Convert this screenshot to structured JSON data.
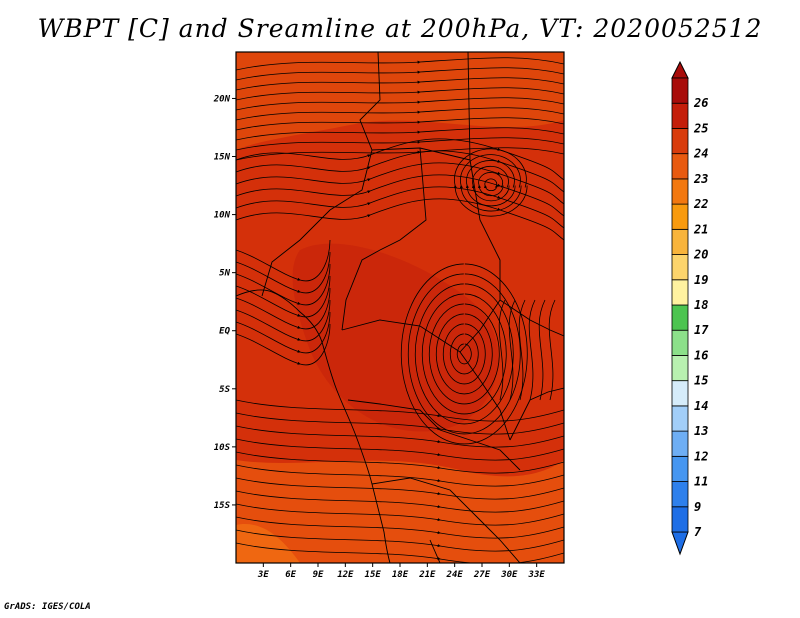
{
  "title": "WBPT [C] and Sreamline at 200hPa, VT: 2020052512",
  "credit": "GrADS: IGES/COLA",
  "map": {
    "lon_range": [
      0,
      36
    ],
    "lat_range": [
      -20,
      24
    ],
    "lat_ticks": [
      {
        "lat": 20,
        "label": "20N"
      },
      {
        "lat": 15,
        "label": "15N"
      },
      {
        "lat": 10,
        "label": "10N"
      },
      {
        "lat": 5,
        "label": "5N"
      },
      {
        "lat": 0,
        "label": "EQ"
      },
      {
        "lat": -5,
        "label": "5S"
      },
      {
        "lat": -10,
        "label": "10S"
      },
      {
        "lat": -15,
        "label": "15S"
      }
    ],
    "lon_ticks": [
      {
        "lon": 3,
        "label": "3E"
      },
      {
        "lon": 6,
        "label": "6E"
      },
      {
        "lon": 9,
        "label": "9E"
      },
      {
        "lon": 12,
        "label": "12E"
      },
      {
        "lon": 15,
        "label": "15E"
      },
      {
        "lon": 18,
        "label": "18E"
      },
      {
        "lon": 21,
        "label": "21E"
      },
      {
        "lon": 24,
        "label": "24E"
      },
      {
        "lon": 27,
        "label": "27E"
      },
      {
        "lon": 30,
        "label": "30E"
      },
      {
        "lon": 33,
        "label": "33E"
      }
    ],
    "base_fill": "#d4300a",
    "shading": [
      {
        "color": "#e04a0c",
        "region": "north"
      },
      {
        "color": "#c8240a",
        "region": "center"
      },
      {
        "color": "#e8560e",
        "region": "south"
      },
      {
        "color": "#f06a12",
        "region": "southwest-corner"
      }
    ],
    "streamline_color": "#000000"
  },
  "colorbar": {
    "colors": [
      "#1e6ee6",
      "#2e80ec",
      "#4696f0",
      "#6eaef4",
      "#a2cef8",
      "#d6ecfa",
      "#b8f0b0",
      "#8ce08a",
      "#4cc450",
      "#fff2a0",
      "#fcd46c",
      "#f8b43c",
      "#f89a0e",
      "#f27810",
      "#e85a10",
      "#d83c0c",
      "#c41e0a",
      "#a80c0a"
    ],
    "labels": [
      "7",
      "9",
      "11",
      "12",
      "13",
      "14",
      "15",
      "16",
      "17",
      "18",
      "19",
      "20",
      "21",
      "22",
      "23",
      "24",
      "25",
      "26"
    ]
  }
}
